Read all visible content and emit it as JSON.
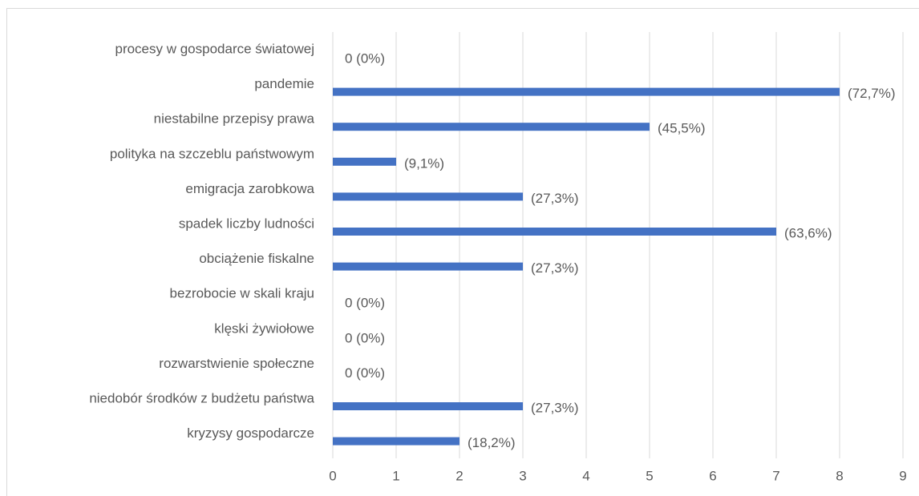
{
  "chart_data": {
    "type": "bar",
    "orientation": "horizontal",
    "categories": [
      "procesy w gospodarce światowej",
      "pandemie",
      "niestabilne przepisy prawa",
      "polityka na szczeblu państwowym",
      "emigracja zarobkowa",
      "spadek liczby ludności",
      "obciążenie fiskalne",
      "bezrobocie w skali kraju",
      "klęski żywiołowe",
      "rozwarstwienie społeczne",
      "niedobór środków z budżetu państwa",
      "kryzysy gospodarcze"
    ],
    "values": [
      0,
      8,
      5,
      1,
      3,
      7,
      3,
      0,
      0,
      0,
      3,
      2
    ],
    "value_labels": [
      "0 (0%)",
      "(72,7%)",
      "(45,5%)",
      "(9,1%)",
      "(27,3%)",
      "(63,6%)",
      "(27,3%)",
      "0 (0%)",
      "0 (0%)",
      "0 (0%)",
      "(27,3%)",
      "(18,2%)"
    ],
    "color": "#4472c4",
    "xlim": [
      0,
      9
    ],
    "xticks": [
      0,
      1,
      2,
      3,
      4,
      5,
      6,
      7,
      8,
      9
    ],
    "grid": true
  }
}
